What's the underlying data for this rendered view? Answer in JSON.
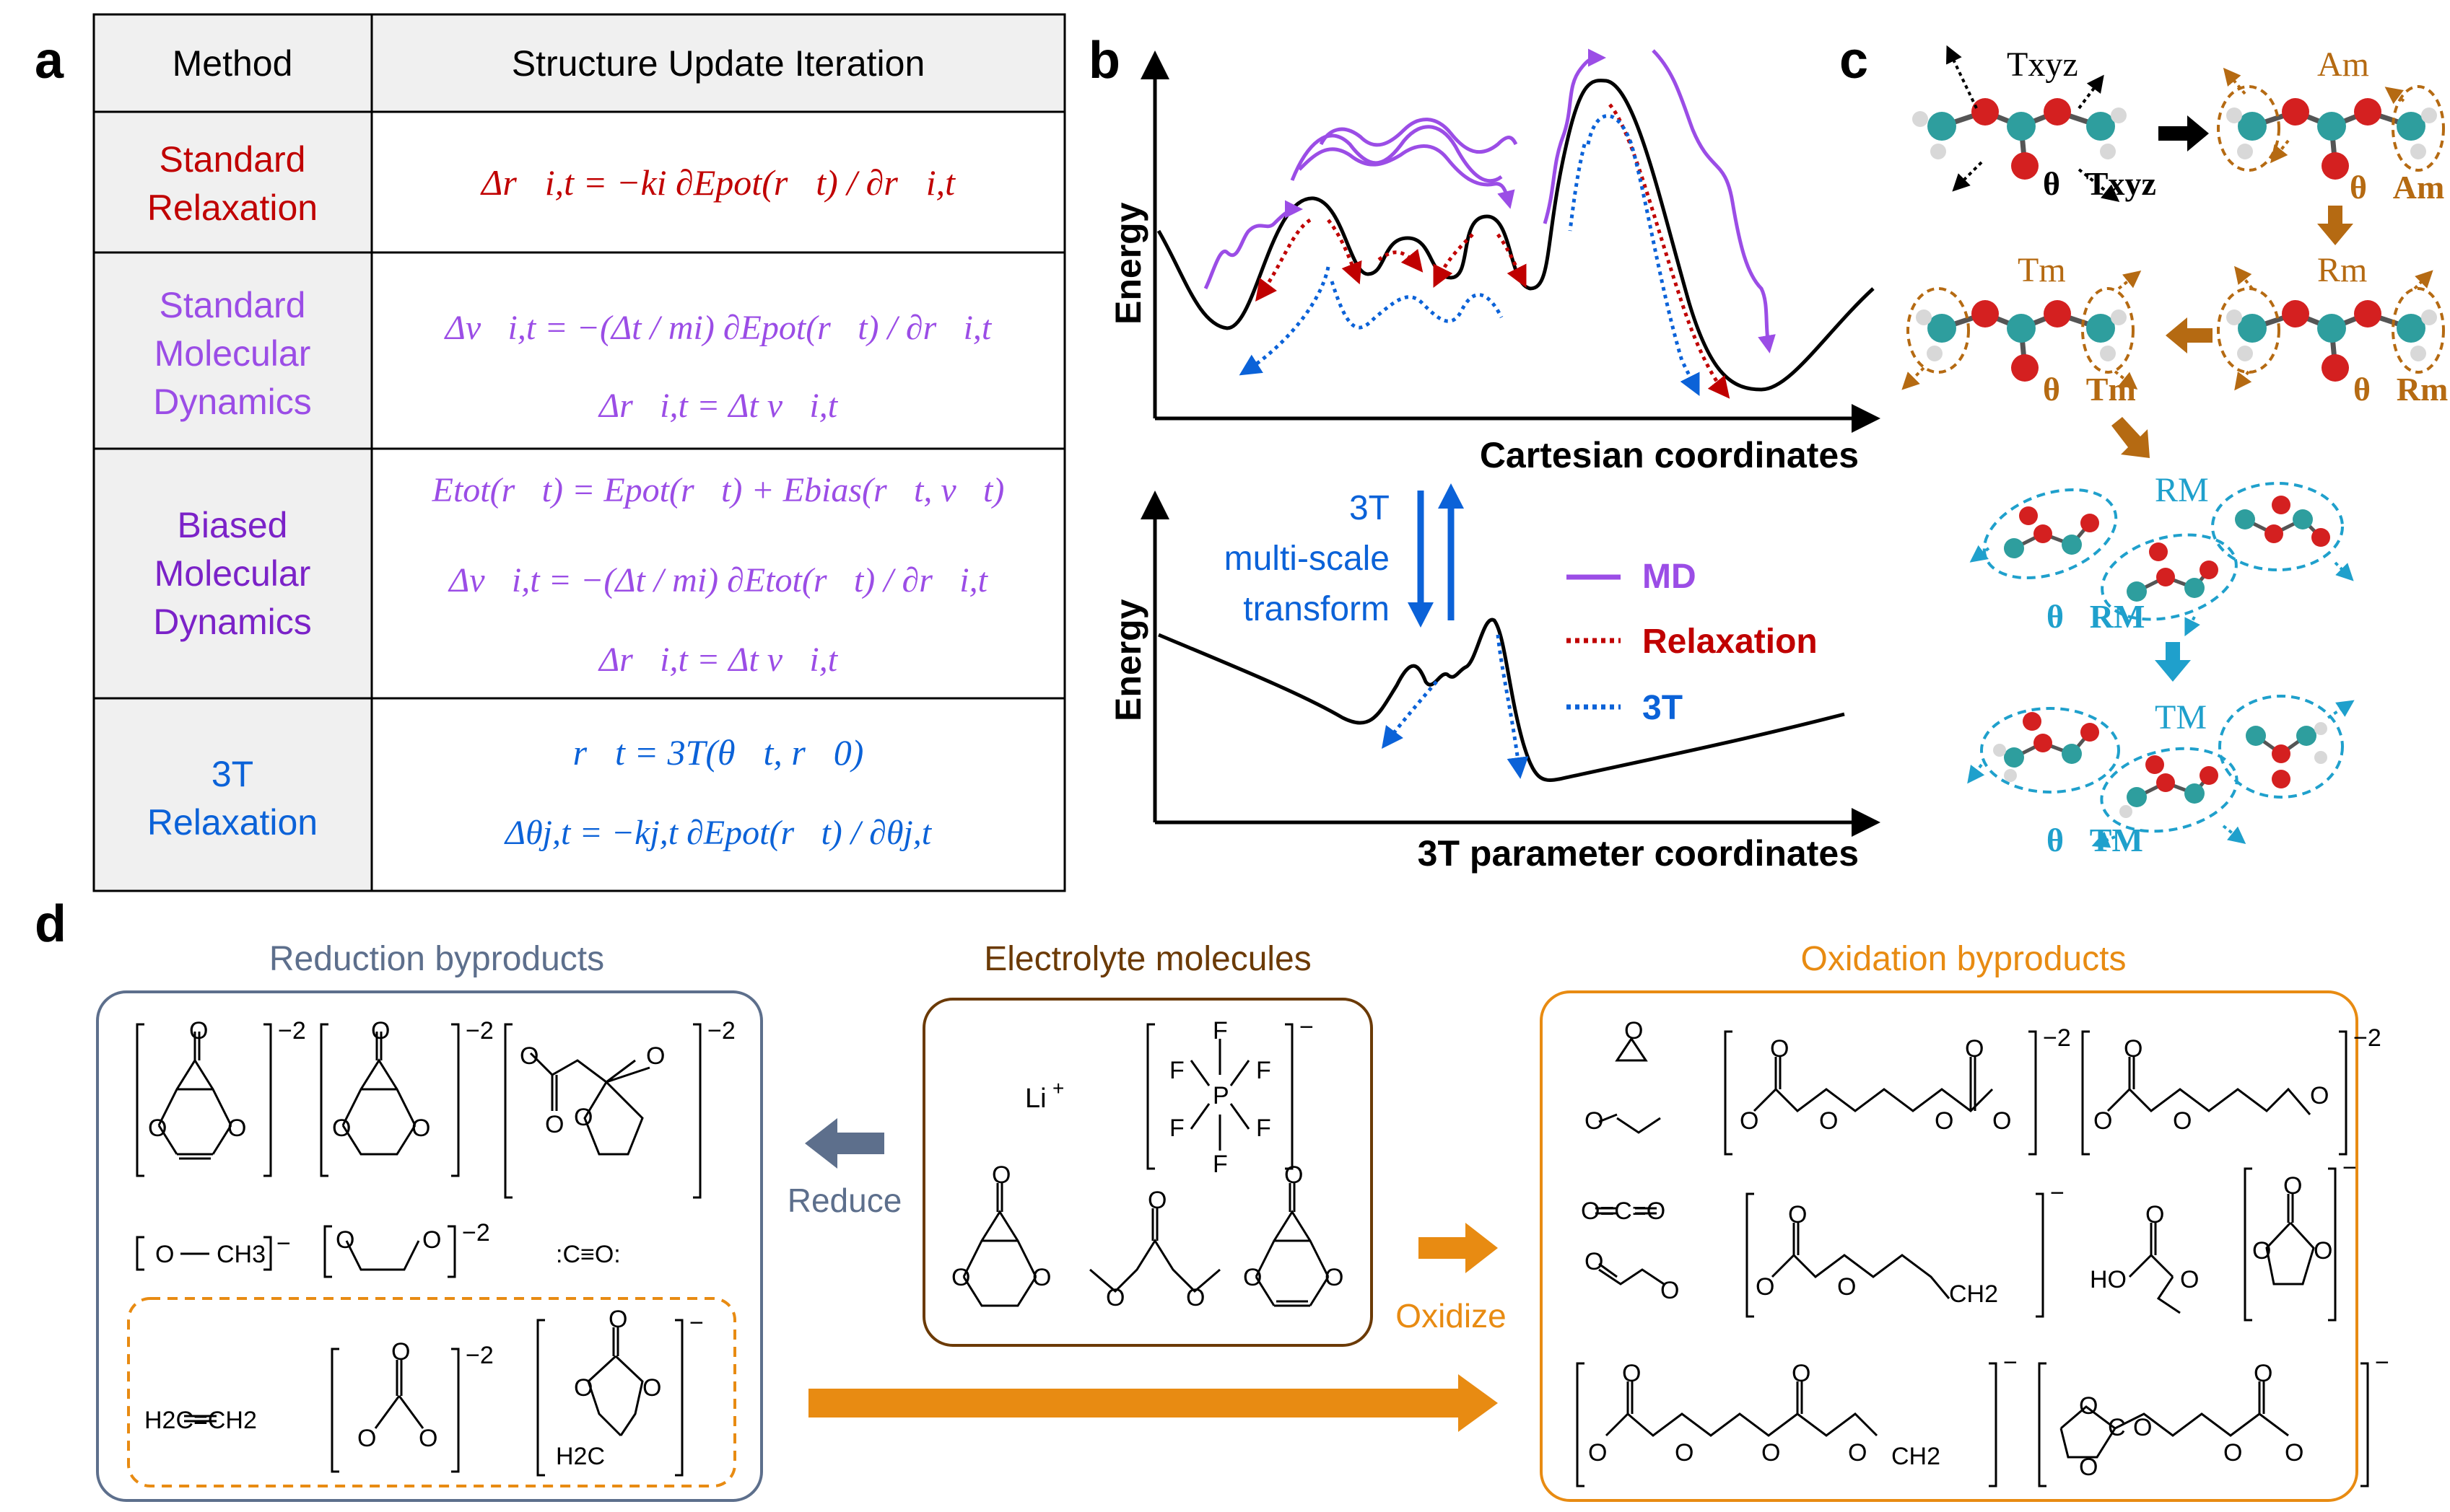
{
  "colors": {
    "red": "#c00000",
    "violet": "#9b4de6",
    "purple": "#7b22c8",
    "blue": "#0b62d8",
    "gray_header": "#f0f0f0",
    "brown": "#b56a12",
    "cyan": "#1fa0cc",
    "slate": "#5d6f8c",
    "orange": "#e88b12",
    "dark_brown": "#6b3a06"
  },
  "panel_a": {
    "label": "a",
    "col_method": "Method",
    "col_update": "Structure Update Iteration",
    "rows": [
      {
        "method": [
          "Standard",
          "Relaxation"
        ],
        "eq": [
          "Δr⃗i,t = −ki ∂Epot(r⃗t) / ∂r⃗i,t"
        ]
      },
      {
        "method": [
          "Standard",
          "Molecular",
          "Dynamics"
        ],
        "eq": [
          "Δv⃗i,t = −(Δt / mi) ∂Epot(r⃗t) / ∂r⃗i,t",
          "Δr⃗i,t = Δt v⃗i,t"
        ]
      },
      {
        "method": [
          "Biased",
          "Molecular",
          "Dynamics"
        ],
        "eq": [
          "Etot(r⃗t) = Epot(r⃗t) + Ebias(r⃗t, v⃗t)",
          "Δv⃗i,t = −(Δt / mi) ∂Etot(r⃗t) / ∂r⃗i,t",
          "Δr⃗i,t = Δt v⃗i,t"
        ]
      },
      {
        "method": [
          "3T",
          "Relaxation"
        ],
        "eq": [
          "r⃗t = 3T(θ⃗t, r⃗0)",
          "Δθj,t = −kj,t ∂Epot(r⃗t) / ∂θj,t"
        ]
      }
    ]
  },
  "panel_b": {
    "label": "b",
    "ylabel": "Energy",
    "xlabel_top": "Cartesian coordinates",
    "xlabel_bottom": "3T parameter coordinates",
    "transform_text": [
      "3T",
      "multi-scale",
      "transform"
    ],
    "legend": [
      "MD",
      "Relaxation",
      "3T"
    ]
  },
  "panel_c": {
    "label": "c",
    "T_xyz": "Txyz",
    "theta_T_xyz": "θ⃗Txyz",
    "A_m": "Am",
    "theta_A_m": "θ⃗Am",
    "R_m": "Rm",
    "theta_R_m": "θ⃗Rm",
    "T_m": "Tm",
    "theta_T_m": "θ⃗Tm",
    "R_M": "RM",
    "theta_R_M": "θ⃗RM",
    "T_M": "TM",
    "theta_T_M": "θ⃗TM"
  },
  "panel_d": {
    "label": "d",
    "reduction_title": "Reduction byproducts",
    "electrolyte_title": "Electrolyte molecules",
    "oxidation_title": "Oxidation byproducts",
    "reduce": "Reduce",
    "oxidize": "Oxidize",
    "charges": [
      "−2",
      "−2",
      "−2",
      "−",
      "−2",
      "−2",
      "−",
      "−",
      "−2",
      "−2",
      "−",
      "−",
      "−",
      "−"
    ],
    "li": "Li",
    "li_charge": "+",
    "atoms": {
      "O": "O",
      "C": "C",
      "F": "F",
      "P": "P",
      "HO": "HO",
      "CH3": "CH3",
      "CH2": "CH2",
      "H2C=CH2": "H2C=CH2",
      "CO": ":C≡O:",
      "OCO": "O=C=O",
      "H2C": "H2C"
    }
  }
}
